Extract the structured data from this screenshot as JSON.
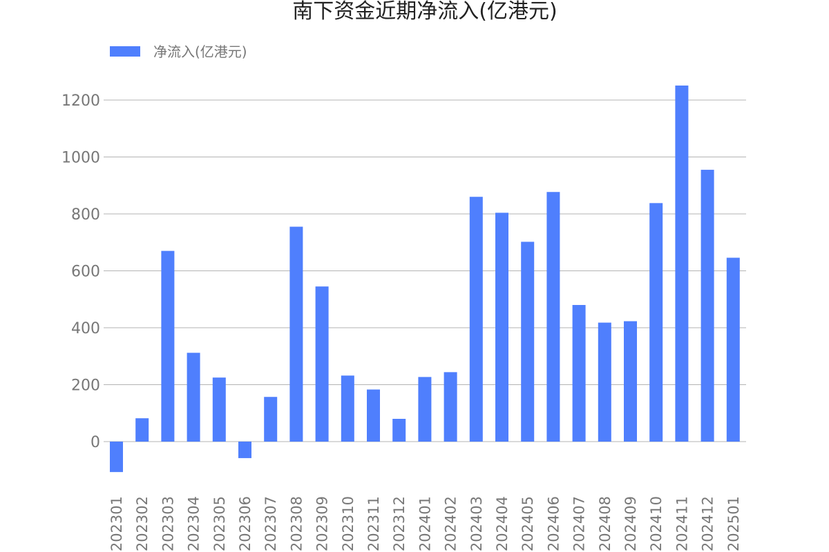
{
  "colors": {
    "bar": "#4f7ffd",
    "grid": "#b3b3b3",
    "text": "#777777",
    "title": "#222222"
  },
  "chart_data": {
    "type": "bar",
    "title": "南下资金近期净流入(亿港元)",
    "xlabel": "",
    "ylabel": "",
    "ylim": [
      -140,
      1300
    ],
    "yticks": [
      0,
      200,
      400,
      600,
      800,
      1000,
      1200
    ],
    "grid": true,
    "legend_position": "top-left",
    "categories": [
      "202301",
      "202302",
      "202303",
      "202304",
      "202305",
      "202306",
      "202307",
      "202308",
      "202309",
      "202310",
      "202311",
      "202312",
      "202401",
      "202402",
      "202403",
      "202404",
      "202405",
      "202406",
      "202407",
      "202408",
      "202409",
      "202410",
      "202411",
      "202412",
      "202501"
    ],
    "series": [
      {
        "name": "净流入(亿港元)",
        "values": [
          -107,
          82,
          670,
          312,
          225,
          -58,
          157,
          755,
          545,
          232,
          183,
          80,
          227,
          244,
          860,
          804,
          702,
          877,
          480,
          418,
          423,
          838,
          1251,
          955,
          646
        ]
      }
    ]
  }
}
